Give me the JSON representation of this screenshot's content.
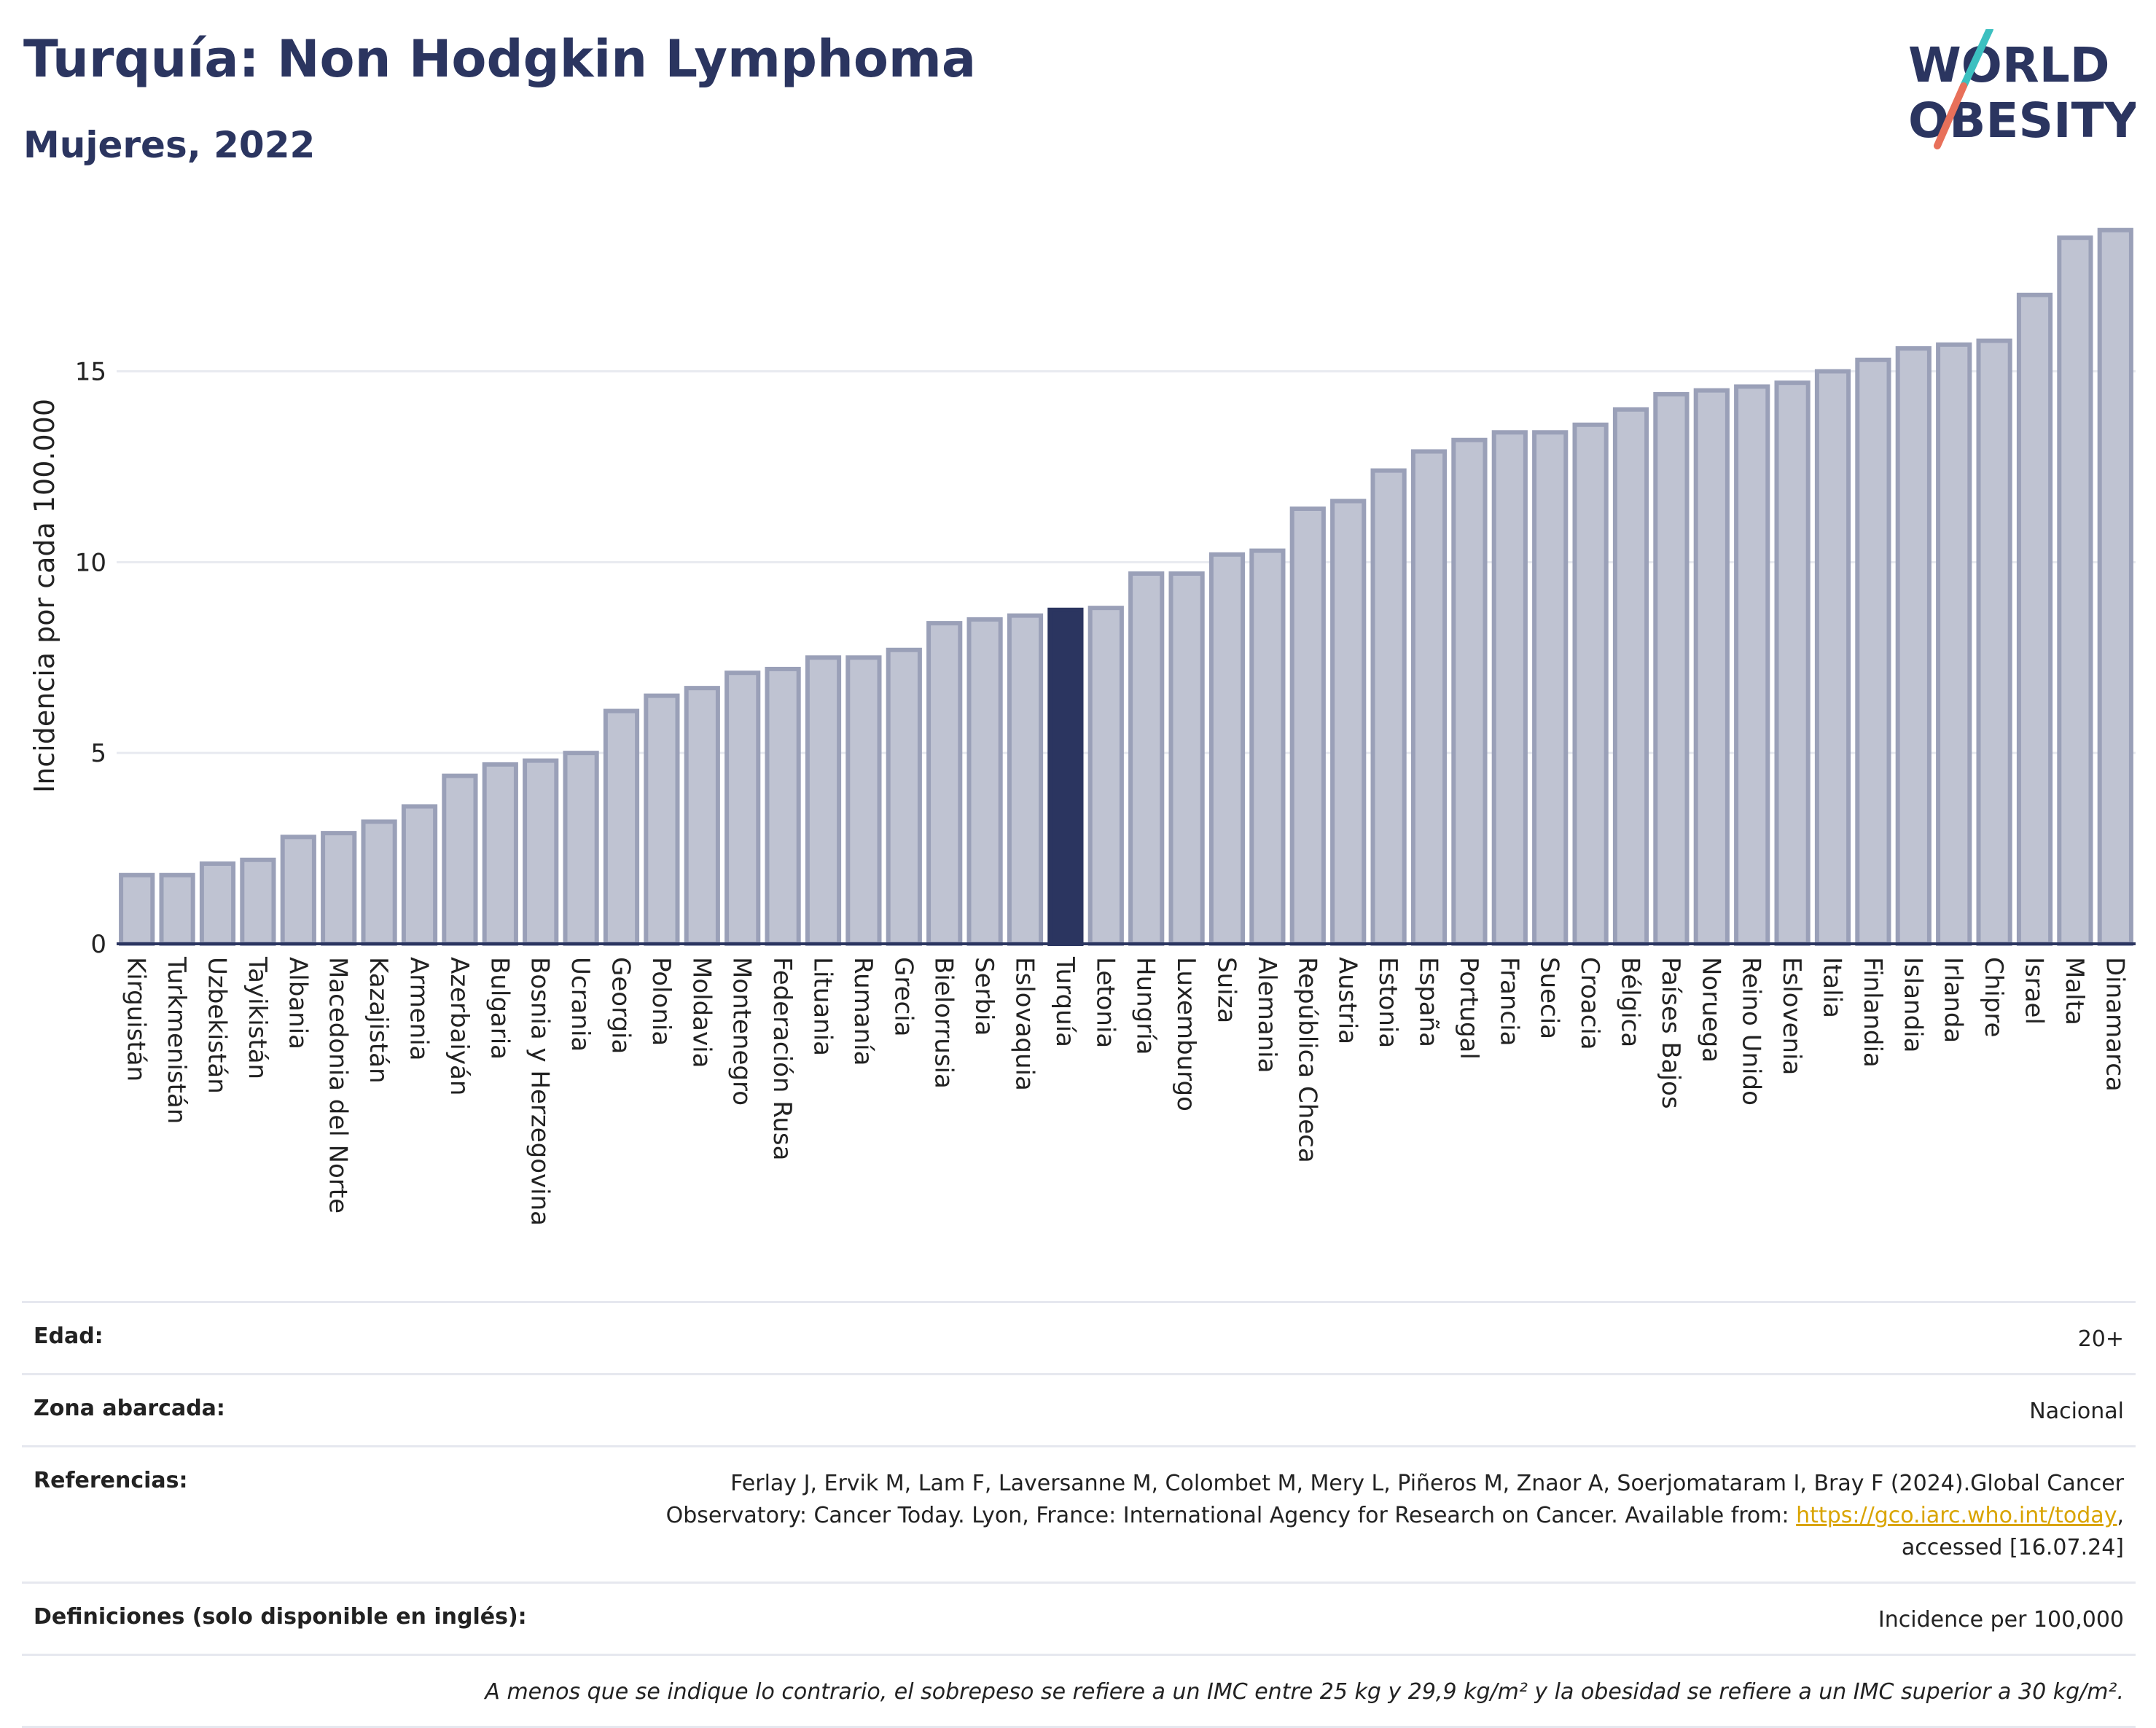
{
  "header": {
    "title": "Turquía: Non Hodgkin Lymphoma",
    "subtitle": "Mujeres, 2022",
    "logo_line1": "WORLD",
    "logo_line2": "OBESITY"
  },
  "colors": {
    "bar": "#bfc3d2",
    "bar_edge": "#9aa0b8",
    "highlight": "#2b3560",
    "logo_teal": "#3cc0c0",
    "logo_coral": "#e8705a"
  },
  "chart_data": {
    "type": "bar",
    "ylabel": "Incidencia por cada 100.000",
    "ylim": [
      0,
      19
    ],
    "yticks": [
      0,
      5,
      10,
      15
    ],
    "grid": true,
    "highlight": "Turquía",
    "categories": [
      "Kirguistán",
      "Turkmenistán",
      "Uzbekistán",
      "Tayikistán",
      "Albania",
      "Macedonia del Norte",
      "Kazajistán",
      "Armenia",
      "Azerbaiyán",
      "Bulgaria",
      "Bosnia y Herzegovina",
      "Ucrania",
      "Georgia",
      "Polonia",
      "Moldavia",
      "Montenegro",
      "Federación Rusa",
      "Lituania",
      "Rumanía",
      "Grecia",
      "Bielorrusia",
      "Serbia",
      "Eslovaquia",
      "Turquía",
      "Letonia",
      "Hungría",
      "Luxemburgo",
      "Suiza",
      "Alemania",
      "República Checa",
      "Austria",
      "Estonia",
      "España",
      "Portugal",
      "Francia",
      "Suecia",
      "Croacia",
      "Bélgica",
      "Países Bajos",
      "Noruega",
      "Reino Unido",
      "Eslovenia",
      "Italia",
      "Finlandia",
      "Islandia",
      "Irlanda",
      "Chipre",
      "Israel",
      "Malta",
      "Dinamarca"
    ],
    "values": [
      1.8,
      1.8,
      2.1,
      2.2,
      2.8,
      2.9,
      3.2,
      3.6,
      4.4,
      4.7,
      4.8,
      5.0,
      6.1,
      6.5,
      6.7,
      7.1,
      7.2,
      7.5,
      7.5,
      7.7,
      8.4,
      8.5,
      8.6,
      8.75,
      8.8,
      9.7,
      9.7,
      10.2,
      10.3,
      11.4,
      11.6,
      12.4,
      12.9,
      13.2,
      13.4,
      13.4,
      13.6,
      14.0,
      14.4,
      14.5,
      14.6,
      14.7,
      15.0,
      15.3,
      15.6,
      15.7,
      15.8,
      17.0,
      18.5,
      18.7
    ]
  },
  "info": {
    "age_label": "Edad:",
    "age_value": "20+",
    "area_label": "Zona abarcada:",
    "area_value": "Nacional",
    "refs_label": "Referencias:",
    "refs_line1": "Ferlay J, Ervik M, Lam F, Laversanne M, Colombet M, Mery L, Piñeros M, Znaor A, Soerjomataram I, Bray F (2024).Global Cancer",
    "refs_line2": "Observatory: Cancer Today. Lyon, France: International Agency for Research on Cancer. Available from: ",
    "refs_link": "https://gco.iarc.who.int/today",
    "refs_line3": "accessed [16.07.24]",
    "defs_label": "Definiciones (solo disponible en inglés):",
    "defs_value": "Incidence per 100,000",
    "note": "A menos que se indique lo contrario, el sobrepeso se refiere a un IMC entre 25 kg y 29,9 kg/m² y la obesidad se refiere a un IMC superior a 30 kg/m²."
  }
}
